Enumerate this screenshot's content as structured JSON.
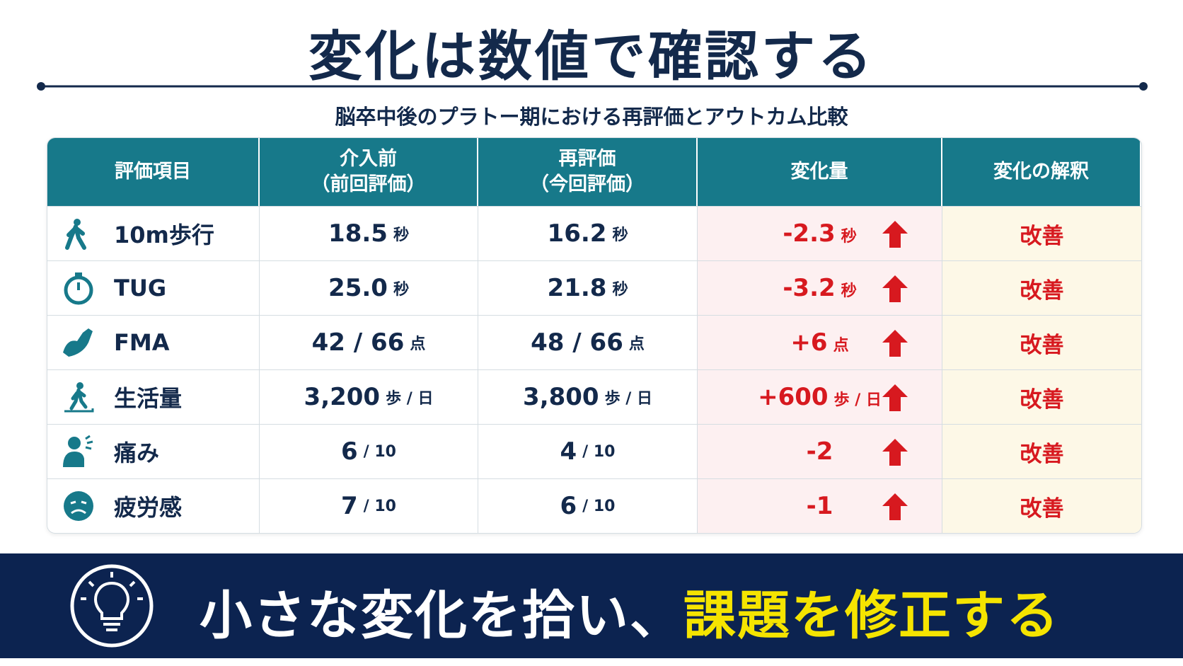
{
  "title": "変化は数値で確認する",
  "subtitle": "脳卒中後のプラトー期における再評価とアウトカム比較",
  "table": {
    "headers": [
      [
        "評価項目"
      ],
      [
        "介入前",
        "（前回評価）"
      ],
      [
        "再評価",
        "（今回評価）"
      ],
      [
        "変化量"
      ],
      [
        "変化の解釈"
      ]
    ],
    "rows": [
      {
        "item": "10m歩行",
        "before": {
          "value": "18.5",
          "unit": "秒"
        },
        "after": {
          "value": "16.2",
          "unit": "秒"
        },
        "change": {
          "value": "-2.3",
          "unit": "秒"
        },
        "interpretation": "改善"
      },
      {
        "item": "TUG",
        "before": {
          "value": "25.0",
          "unit": "秒"
        },
        "after": {
          "value": "21.8",
          "unit": "秒"
        },
        "change": {
          "value": "-3.2",
          "unit": "秒"
        },
        "interpretation": "改善"
      },
      {
        "item": "FMA",
        "before": {
          "value": "42 / 66",
          "unit": "点"
        },
        "after": {
          "value": "48 / 66",
          "unit": "点"
        },
        "change": {
          "value": "+6",
          "unit": "点"
        },
        "interpretation": "改善"
      },
      {
        "item": "生活量",
        "before": {
          "value": "3,200",
          "unit": "歩 / 日"
        },
        "after": {
          "value": "3,800",
          "unit": "歩 / 日"
        },
        "change": {
          "value": "+600",
          "unit": "歩 / 日"
        },
        "interpretation": "改善"
      },
      {
        "item": "痛み",
        "before": {
          "value": "6",
          "unit": "/ 10"
        },
        "after": {
          "value": "4",
          "unit": "/ 10"
        },
        "change": {
          "value": "-2"
        },
        "interpretation": "改善"
      },
      {
        "item": "疲労感",
        "before": {
          "value": "7",
          "unit": "/ 10"
        },
        "after": {
          "value": "6",
          "unit": "/ 10"
        },
        "change": {
          "value": "-1"
        },
        "interpretation": "改善"
      }
    ]
  },
  "footer": {
    "message": "小さな変化を拾い、",
    "highlight": "課題を修正する"
  }
}
